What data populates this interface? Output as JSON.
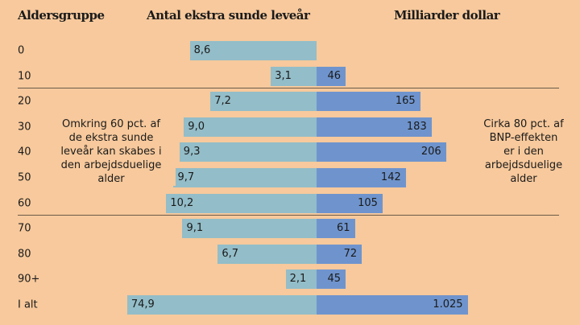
{
  "chart_data": {
    "type": "bar",
    "title": "",
    "headers": {
      "group": "Aldersgruppe",
      "left": "Antal ekstra sunde leveår",
      "right": "Milliarder dollar"
    },
    "categories": [
      "0",
      "10",
      "20",
      "30",
      "40",
      "50",
      "60",
      "70",
      "80",
      "90+",
      "I alt"
    ],
    "series": [
      {
        "name": "Antal ekstra sunde leveår",
        "values": [
          8.6,
          3.1,
          7.2,
          9.0,
          9.3,
          9.7,
          10.2,
          9.1,
          6.7,
          2.1,
          74.9
        ],
        "labels": [
          "8,6",
          "3,1",
          "7,2",
          "9,0",
          "9,3",
          "9,7",
          "10,2",
          "9,1",
          "6,7",
          "2,1",
          "74,9"
        ]
      },
      {
        "name": "Milliarder dollar",
        "values": [
          null,
          46,
          165,
          183,
          206,
          142,
          105,
          61,
          72,
          45,
          1025
        ],
        "labels": [
          "",
          "46",
          "165",
          "183",
          "206",
          "142",
          "105",
          "61",
          "72",
          "45",
          "1.025"
        ]
      }
    ],
    "annotations": {
      "left": [
        "Omkring 60 pct. af",
        "de ekstra sunde",
        "leveår kan skabes i",
        "den arbejdsduelige",
        "alder"
      ],
      "right": [
        "Cirka 80 pct. af",
        "BNP-effekten",
        "er i den",
        "arbejdsduelige",
        "alder"
      ]
    }
  },
  "colors": {
    "background": "#f7c99c",
    "left": "#93bdc8",
    "right": "#6f94cd"
  }
}
